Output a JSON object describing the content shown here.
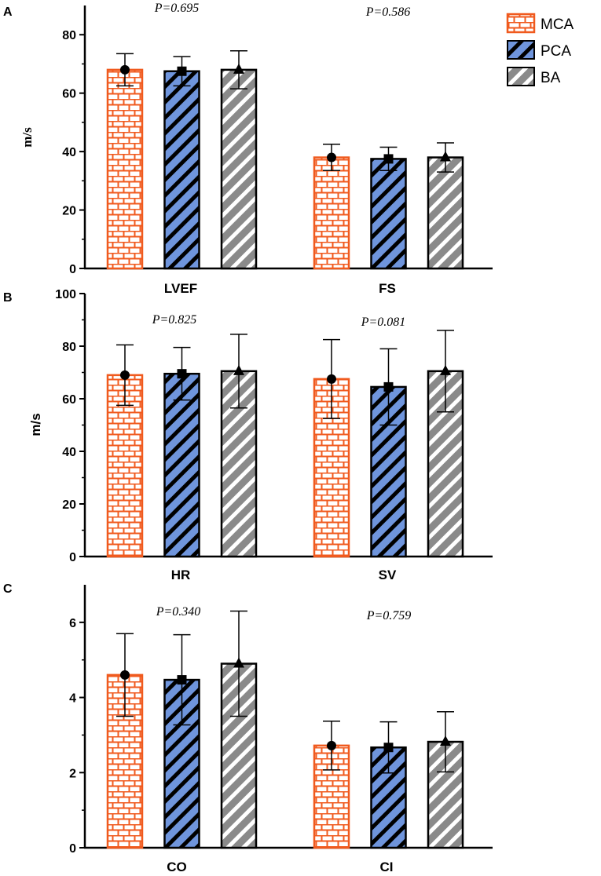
{
  "legend": [
    {
      "name": "MCA",
      "pattern": "brick"
    },
    {
      "name": "PCA",
      "pattern": "stripe-blue"
    },
    {
      "name": "BA",
      "pattern": "stripe-gray"
    }
  ],
  "colors": {
    "mca": "#f05a1e",
    "pca": "#6f95dc",
    "ba": "#8a8a8a",
    "axis": "#000000"
  },
  "chart_data": [
    {
      "type": "bar",
      "panel_label": "A",
      "ylabel": "m/s",
      "ylim": [
        0,
        90
      ],
      "yticks": [
        0,
        20,
        40,
        60,
        80
      ],
      "categories": [
        "LVEF",
        "FS"
      ],
      "p_values": [
        "P=0.695",
        "P=0.586"
      ],
      "series": [
        {
          "name": "MCA",
          "values": [
            68,
            38
          ],
          "errors": [
            5.5,
            4.5
          ],
          "marker": "circle"
        },
        {
          "name": "PCA",
          "values": [
            67.5,
            37.5
          ],
          "errors": [
            5,
            4
          ],
          "marker": "square"
        },
        {
          "name": "BA",
          "values": [
            68,
            38
          ],
          "errors": [
            6.5,
            5
          ],
          "marker": "triangle"
        }
      ]
    },
    {
      "type": "bar",
      "panel_label": "B",
      "ylabel": "m/s",
      "ylim": [
        0,
        100
      ],
      "yticks": [
        0,
        20,
        40,
        60,
        80,
        100
      ],
      "categories": [
        "HR",
        "SV"
      ],
      "p_values": [
        "P=0.825",
        "P=0.081"
      ],
      "series": [
        {
          "name": "MCA",
          "values": [
            69,
            67.5
          ],
          "errors": [
            11.5,
            15
          ],
          "marker": "circle"
        },
        {
          "name": "PCA",
          "values": [
            69.5,
            64.5
          ],
          "errors": [
            10,
            14.5
          ],
          "marker": "square"
        },
        {
          "name": "BA",
          "values": [
            70.5,
            70.5
          ],
          "errors": [
            14,
            15.5
          ],
          "marker": "triangle"
        }
      ]
    },
    {
      "type": "bar",
      "panel_label": "C",
      "ylabel": "",
      "ylim": [
        0,
        7
      ],
      "yticks": [
        0,
        2,
        4,
        6
      ],
      "categories": [
        "CO",
        "CI"
      ],
      "p_values": [
        "P=0.340",
        "P=0.759"
      ],
      "series": [
        {
          "name": "MCA",
          "values": [
            4.6,
            2.72
          ],
          "errors": [
            1.1,
            0.65
          ],
          "marker": "circle"
        },
        {
          "name": "PCA",
          "values": [
            4.47,
            2.67
          ],
          "errors": [
            1.2,
            0.68
          ],
          "marker": "square"
        },
        {
          "name": "BA",
          "values": [
            4.9,
            2.82
          ],
          "errors": [
            1.4,
            0.8
          ],
          "marker": "triangle"
        }
      ]
    }
  ]
}
